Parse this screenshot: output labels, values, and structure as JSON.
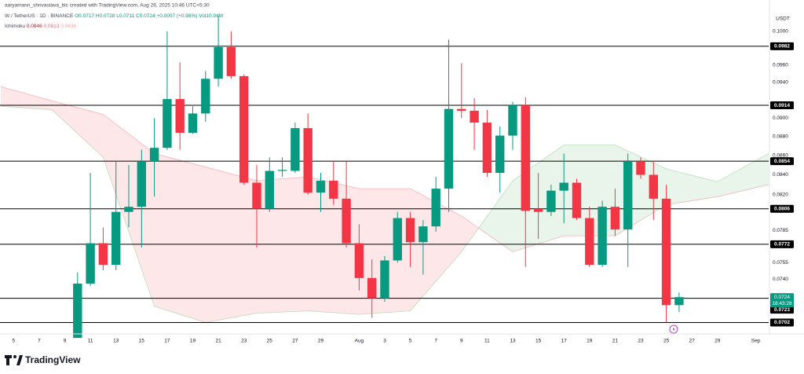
{
  "header": {
    "credit": "aaryamann_shrivastava_blc created with TradingView.com, Aug 26, 2025 10:46 UTC+5:30",
    "symbol": "W / TetherUS · 1D · BINANCE",
    "ohlc": "O0.0717 H0.0728 L0.0711 C0.0724 +0.0007 (+0.98%)",
    "volume": "Vol10.94M",
    "indicator": "Ichimoku",
    "indicator_values": [
      "0.0846",
      "0.0813",
      "0.0836"
    ],
    "currency": "USDT",
    "countdown": "18:43:28",
    "brand": "TradingView"
  },
  "chart_data": {
    "type": "candlestick",
    "log": true,
    "grid": false,
    "up_color": "#089981",
    "down_color": "#f23645",
    "level_color": "#000000",
    "xlim": [
      "Jul 4",
      "Sep 2"
    ],
    "ylim": [
      0.0693,
      0.1025
    ],
    "yticks": [
      {
        "value": 0.1,
        "label": "0.1000"
      },
      {
        "value": 0.096,
        "label": "0.0960"
      },
      {
        "value": 0.094,
        "label": "0.0940"
      },
      {
        "value": 0.09,
        "label": "0.0900"
      },
      {
        "value": 0.088,
        "label": "0.0880"
      },
      {
        "value": 0.086,
        "label": "0.0860"
      },
      {
        "value": 0.084,
        "label": "0.0840"
      },
      {
        "value": 0.082,
        "label": "0.0820"
      },
      0.0785,
      0.0755,
      {
        "value": 0.074,
        "label": "0.0740"
      }
    ],
    "xticks": [
      {
        "value": "Jul 5",
        "label": "5"
      },
      {
        "value": "Jul 7",
        "label": "7"
      },
      {
        "value": "Jul 9",
        "label": "9"
      },
      {
        "value": "Jul 11",
        "label": "11"
      },
      {
        "value": "Jul 13",
        "label": "13"
      },
      {
        "value": "Jul 15",
        "label": "15"
      },
      {
        "value": "Jul 17",
        "label": "17"
      },
      {
        "value": "Jul 19",
        "label": "19"
      },
      {
        "value": "Jul 21",
        "label": "21"
      },
      {
        "value": "Jul 23",
        "label": "23"
      },
      {
        "value": "Jul 25",
        "label": "25"
      },
      {
        "value": "Jul 27",
        "label": "27"
      },
      {
        "value": "Jul 29",
        "label": "29"
      },
      {
        "value": "Aug 1",
        "label": "Aug"
      },
      {
        "value": "Aug 3",
        "label": "3"
      },
      {
        "value": "Aug 5",
        "label": "5"
      },
      {
        "value": "Aug 7",
        "label": "7"
      },
      {
        "value": "Aug 9",
        "label": "9"
      },
      {
        "value": "Aug 11",
        "label": "11"
      },
      {
        "value": "Aug 13",
        "label": "13"
      },
      {
        "value": "Aug 15",
        "label": "15"
      },
      {
        "value": "Aug 17",
        "label": "17"
      },
      {
        "value": "Aug 19",
        "label": "19"
      },
      {
        "value": "Aug 21",
        "label": "21"
      },
      {
        "value": "Aug 23",
        "label": "23"
      },
      {
        "value": "Aug 25",
        "label": "25"
      },
      {
        "value": "Aug 27",
        "label": "27"
      },
      {
        "value": "Aug 29",
        "label": "29"
      },
      {
        "value": "Sep 1",
        "label": "Sep"
      }
    ],
    "x": [
      "Jul 10",
      "Jul 11",
      "Jul 12",
      "Jul 13",
      "Jul 14",
      "Jul 15",
      "Jul 16",
      "Jul 17",
      "Jul 18",
      "Jul 19",
      "Jul 20",
      "Jul 21",
      "Jul 22",
      "Jul 23",
      "Jul 24",
      "Jul 25",
      "Jul 26",
      "Jul 27",
      "Jul 28",
      "Jul 29",
      "Jul 30",
      "Jul 31",
      "Aug 1",
      "Aug 2",
      "Aug 3",
      "Aug 4",
      "Aug 5",
      "Aug 6",
      "Aug 7",
      "Aug 8",
      "Aug 9",
      "Aug 10",
      "Aug 11",
      "Aug 12",
      "Aug 13",
      "Aug 14",
      "Aug 15",
      "Aug 16",
      "Aug 17",
      "Aug 18",
      "Aug 19",
      "Aug 20",
      "Aug 21",
      "Aug 22",
      "Aug 23",
      "Aug 24",
      "Aug 25",
      "Aug 26"
    ],
    "open": [
      0.0689,
      0.0736,
      0.0773,
      0.0753,
      0.0803,
      0.0808,
      0.0854,
      0.0868,
      0.0921,
      0.0884,
      0.0905,
      0.0944,
      0.0981,
      0.0947,
      0.0832,
      0.0806,
      0.0844,
      0.0844,
      0.0889,
      0.0822,
      0.0834,
      0.0816,
      0.0773,
      0.0741,
      0.0723,
      0.0757,
      0.0797,
      0.0774,
      0.0789,
      0.0826,
      0.091,
      0.0908,
      0.0895,
      0.0842,
      0.0881,
      0.0914,
      0.0806,
      0.0803,
      0.0824,
      0.0832,
      0.0797,
      0.0753,
      0.0808,
      0.0786,
      0.0854,
      0.084,
      0.0816,
      0.0717
    ],
    "high": [
      0.0746,
      0.0842,
      0.0788,
      0.0854,
      0.085,
      0.0866,
      0.09,
      0.1,
      0.0963,
      0.0913,
      0.0953,
      0.1019,
      0.1,
      0.0949,
      0.085,
      0.0858,
      0.0858,
      0.0895,
      0.0905,
      0.0842,
      0.0854,
      0.0854,
      0.0791,
      0.0758,
      0.0761,
      0.0803,
      0.0803,
      0.0795,
      0.0838,
      0.099,
      0.0962,
      0.0922,
      0.0909,
      0.0891,
      0.0918,
      0.0923,
      0.0842,
      0.083,
      0.0862,
      0.0836,
      0.0808,
      0.0814,
      0.0826,
      0.0862,
      0.0858,
      0.0854,
      0.083,
      0.0728
    ],
    "low": [
      0.0689,
      0.0734,
      0.0748,
      0.0748,
      0.0788,
      0.0769,
      0.0818,
      0.0866,
      0.0866,
      0.0883,
      0.0896,
      0.0935,
      0.0944,
      0.083,
      0.0769,
      0.0803,
      0.0838,
      0.0842,
      0.082,
      0.0803,
      0.081,
      0.0769,
      0.073,
      0.0706,
      0.072,
      0.0755,
      0.0751,
      0.0744,
      0.0784,
      0.0803,
      0.09,
      0.0866,
      0.0838,
      0.0822,
      0.0866,
      0.0751,
      0.0777,
      0.0799,
      0.0792,
      0.0795,
      0.0751,
      0.0751,
      0.078,
      0.0751,
      0.0836,
      0.0795,
      0.0702,
      0.0711
    ],
    "close": [
      0.0736,
      0.0773,
      0.0753,
      0.0803,
      0.0808,
      0.0854,
      0.0868,
      0.0921,
      0.0884,
      0.0905,
      0.0944,
      0.0981,
      0.0947,
      0.0832,
      0.0806,
      0.0844,
      0.0845,
      0.0889,
      0.0822,
      0.0834,
      0.0816,
      0.0773,
      0.0741,
      0.0723,
      0.0757,
      0.0797,
      0.0774,
      0.0789,
      0.0826,
      0.091,
      0.0908,
      0.0895,
      0.0842,
      0.0881,
      0.0914,
      0.0804,
      0.0803,
      0.0824,
      0.0832,
      0.0797,
      0.0753,
      0.0808,
      0.0786,
      0.0854,
      0.084,
      0.0816,
      0.0717,
      0.0724
    ],
    "levels": [
      0.0982,
      0.0914,
      0.0854,
      0.0806,
      0.0772,
      0.0723,
      0.0702
    ],
    "ichimoku": {
      "bull_color": "#4caf50",
      "bear_color": "#f23645",
      "x": [
        "Jul 4",
        "Jul 8",
        "Jul 12",
        "Jul 16",
        "Jul 20",
        "Jul 24",
        "Jul 28",
        "Aug 1",
        "Aug 5",
        "Aug 9",
        "Aug 13",
        "Aug 17",
        "Aug 21",
        "Aug 25",
        "Aug 29",
        "Sep 2"
      ],
      "span_a": [
        0.0913,
        0.0909,
        0.0858,
        0.0716,
        0.0702,
        0.071,
        0.0712,
        0.0709,
        0.0712,
        0.0765,
        0.0834,
        0.0871,
        0.0871,
        0.0846,
        0.0833,
        0.0862
      ],
      "span_b": [
        0.0935,
        0.0919,
        0.0904,
        0.0862,
        0.0848,
        0.0834,
        0.0838,
        0.0826,
        0.0826,
        0.0799,
        0.0765,
        0.078,
        0.078,
        0.081,
        0.0818,
        0.083
      ]
    }
  }
}
